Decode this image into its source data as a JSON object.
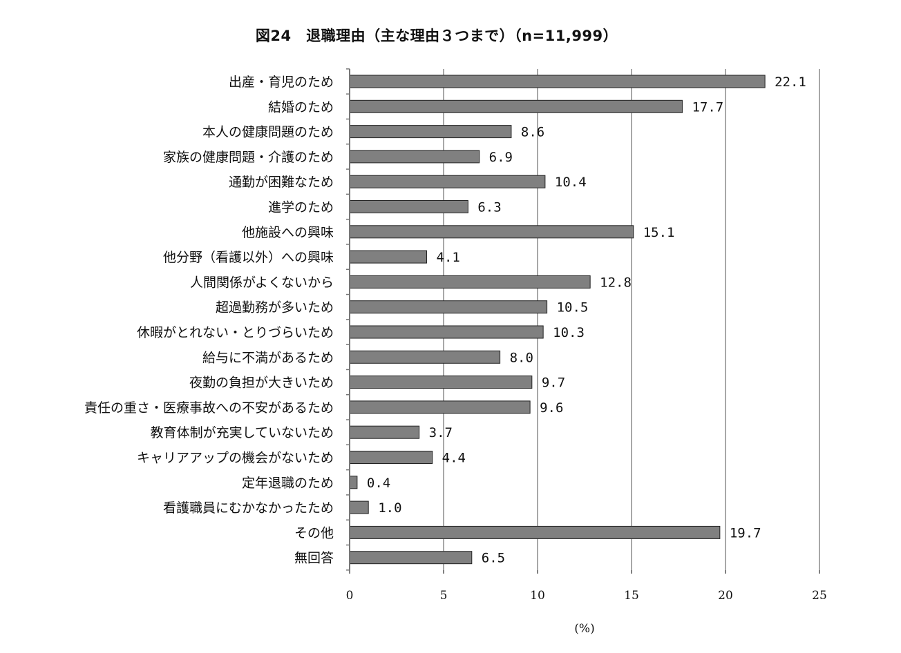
{
  "chart_data": {
    "type": "bar",
    "orientation": "horizontal",
    "title": "図24　退職理由（主な理由３つまで）（n=11,999）",
    "xlabel": "(%)",
    "ylabel": "",
    "xlim": [
      0,
      25
    ],
    "xticks": [
      0,
      5,
      10,
      15,
      20,
      25
    ],
    "grid": true,
    "bar_color": "#808080",
    "categories": [
      "出産・育児のため",
      "結婚のため",
      "本人の健康問題のため",
      "家族の健康問題・介護のため",
      "通勤が困難なため",
      "進学のため",
      "他施設への興味",
      "他分野（看護以外）への興味",
      "人間関係がよくないから",
      "超過勤務が多いため",
      "休暇がとれない・とりづらいため",
      "給与に不満があるため",
      "夜勤の負担が大きいため",
      "責任の重さ・医療事故への不安があるため",
      "教育体制が充実していないため",
      "キャリアアップの機会がないため",
      "定年退職のため",
      "看護職員にむかなかったため",
      "その他",
      "無回答"
    ],
    "values": [
      22.1,
      17.7,
      8.6,
      6.9,
      10.4,
      6.3,
      15.1,
      4.1,
      12.8,
      10.5,
      10.3,
      8.0,
      9.7,
      9.6,
      3.7,
      4.4,
      0.4,
      1.0,
      19.7,
      6.5
    ],
    "value_labels": [
      "22.1",
      "17.7",
      "8.6",
      "6.9",
      "10.4",
      "6.3",
      "15.1",
      "4.1",
      "12.8",
      "10.5",
      "10.3",
      "8.0",
      "9.7",
      "9.6",
      "3.7",
      "4.4",
      "0.4",
      "1.0",
      "19.7",
      "6.5"
    ]
  }
}
